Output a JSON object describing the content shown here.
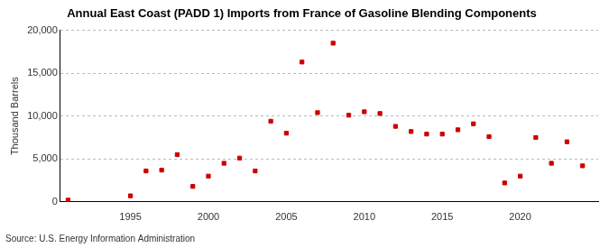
{
  "chart_data": {
    "type": "scatter",
    "title": "Annual East Coast (PADD 1) Imports from France of Gasoline Blending Components",
    "y_label": "Thousand Barrels",
    "source": "Source: U.S. Energy Information Administration",
    "x": [
      1991,
      1995,
      1996,
      1997,
      1998,
      1999,
      2000,
      2001,
      2002,
      2003,
      2004,
      2005,
      2006,
      2007,
      2008,
      2009,
      2010,
      2011,
      2012,
      2013,
      2014,
      2015,
      2016,
      2017,
      2018,
      2019,
      2020,
      2021,
      2022,
      2023,
      2024
    ],
    "values": [
      200,
      700,
      3600,
      3700,
      5500,
      1800,
      3000,
      4500,
      5100,
      3600,
      9400,
      8000,
      16300,
      10400,
      18500,
      10100,
      10500,
      10300,
      8800,
      8200,
      7900,
      7900,
      8400,
      9100,
      7600,
      2200,
      3000,
      7500,
      4500,
      7000,
      4200
    ],
    "color": "#cc0000",
    "marker": "square",
    "xlim": [
      1990.5,
      2025
    ],
    "xticks": [
      1995,
      2000,
      2005,
      2010,
      2015,
      2020
    ],
    "ylim": [
      0,
      20000
    ],
    "yticks": [
      0,
      {
        "value": 5000,
        "label": "5,000"
      },
      {
        "value": 10000,
        "label": "10,000"
      },
      {
        "value": 15000,
        "label": "15,000"
      },
      {
        "value": 20000,
        "label": "20,000"
      }
    ],
    "grid": true
  }
}
